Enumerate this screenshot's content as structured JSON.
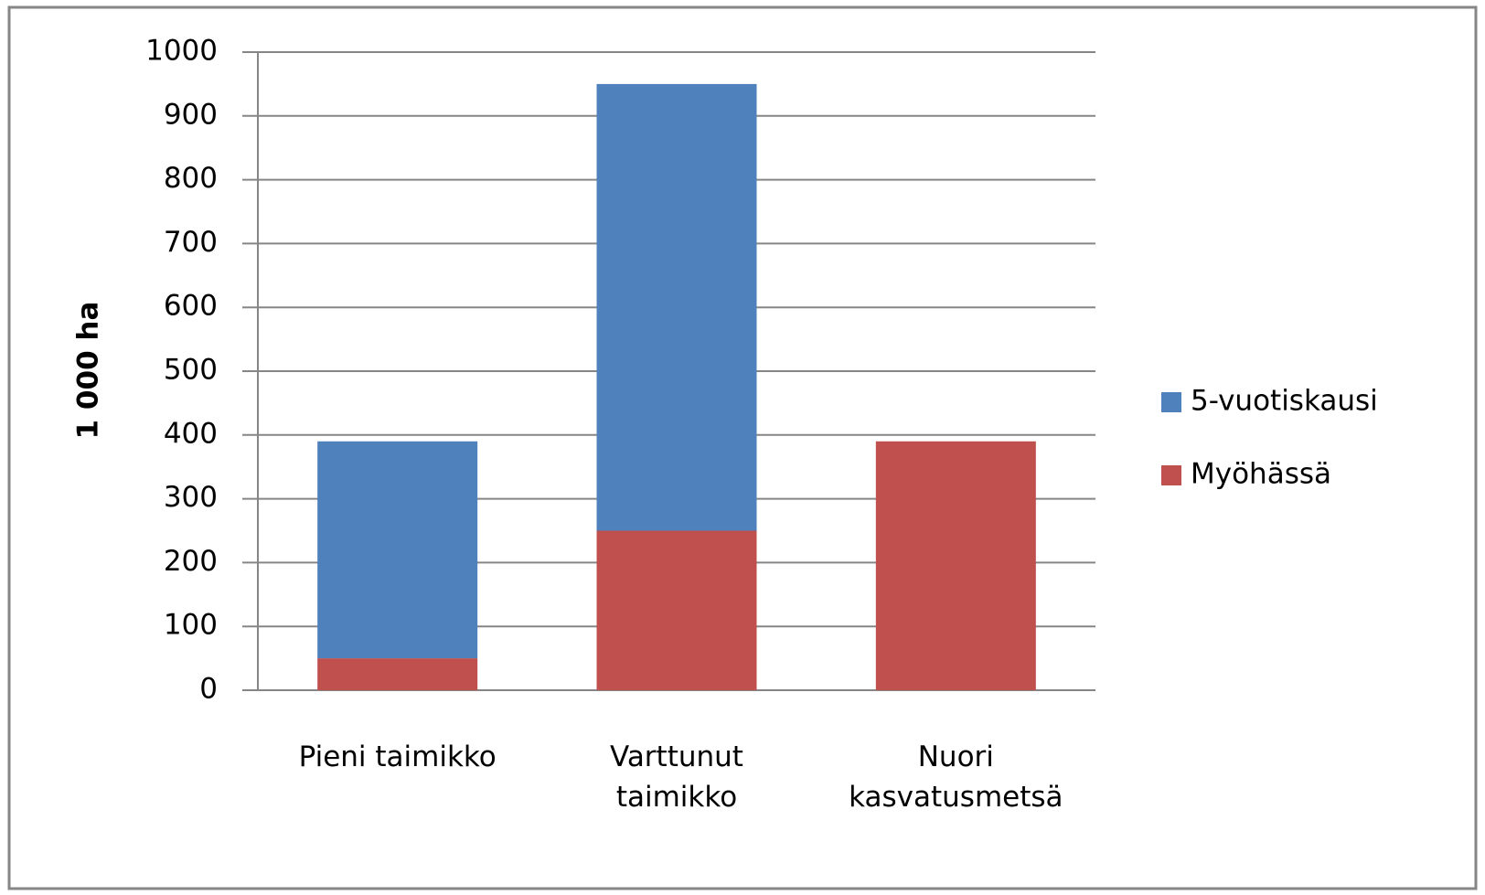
{
  "chart_data": {
    "type": "stacked_bar",
    "y_axis_label": "1 000 ha",
    "categories": [
      "Pieni taimikko",
      "Varttunut taimikko",
      "Nuori kasvatusmetsä"
    ],
    "series": [
      {
        "name": "Myöhässä",
        "color": "#c0504d",
        "values": [
          50,
          250,
          390
        ]
      },
      {
        "name": "5-vuotiskausi",
        "color": "#4f81bd",
        "values": [
          340,
          700,
          0
        ]
      }
    ],
    "ylim": [
      0,
      1000
    ],
    "yticks": [
      0,
      100,
      200,
      300,
      400,
      500,
      600,
      700,
      800,
      900,
      1000
    ],
    "grid": true,
    "legend": "right"
  }
}
